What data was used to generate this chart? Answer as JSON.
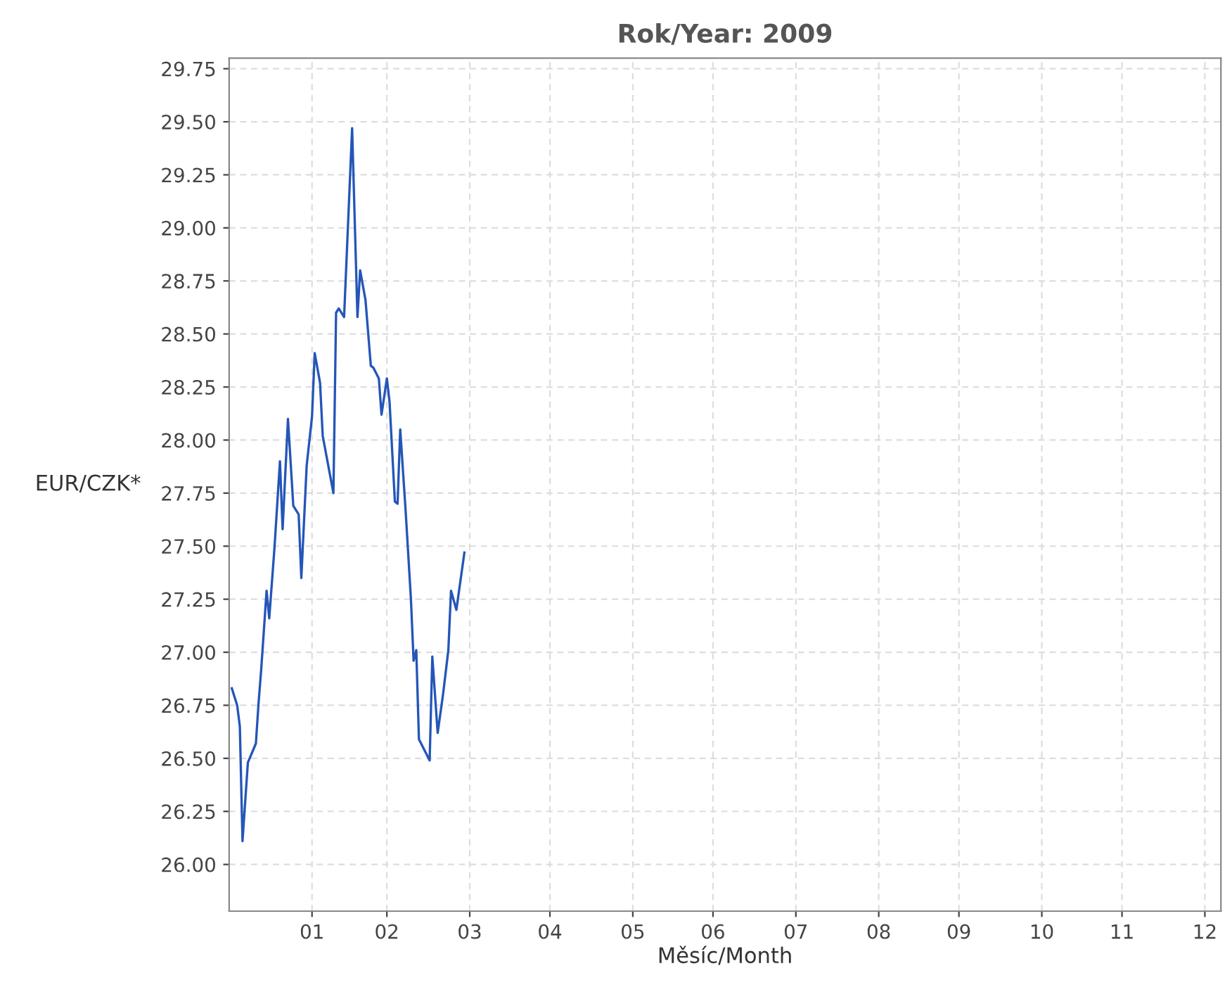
{
  "chart_data": {
    "type": "line",
    "title": "Rok/Year: 2009",
    "xlabel": "Měsíc/Month",
    "ylabel": "EUR/CZK*",
    "x": [
      "2009-01-02",
      "2009-01-04",
      "2009-01-05",
      "2009-01-06",
      "2009-01-08",
      "2009-01-11",
      "2009-01-12",
      "2009-01-13",
      "2009-01-15",
      "2009-01-16",
      "2009-01-18",
      "2009-01-20",
      "2009-01-21",
      "2009-01-23",
      "2009-01-25",
      "2009-01-27",
      "2009-01-28",
      "2009-01-30",
      "2009-02-01",
      "2009-02-02",
      "2009-02-04",
      "2009-02-05",
      "2009-02-09",
      "2009-02-10",
      "2009-02-11",
      "2009-02-13",
      "2009-02-16",
      "2009-02-18",
      "2009-02-19",
      "2009-02-21",
      "2009-02-23",
      "2009-02-24",
      "2009-02-26",
      "2009-02-27",
      "2009-03-01",
      "2009-03-02",
      "2009-03-04",
      "2009-03-05",
      "2009-03-06",
      "2009-03-08",
      "2009-03-10",
      "2009-03-11",
      "2009-03-12",
      "2009-03-13",
      "2009-03-17",
      "2009-03-18",
      "2009-03-20",
      "2009-03-22",
      "2009-03-24",
      "2009-03-25",
      "2009-03-27",
      "2009-03-30"
    ],
    "series": [
      {
        "color": "#2456b8",
        "values": [
          26.83,
          26.75,
          26.65,
          26.11,
          26.48,
          26.57,
          26.76,
          26.92,
          27.29,
          27.16,
          27.5,
          27.9,
          27.58,
          28.1,
          27.69,
          27.65,
          27.35,
          27.88,
          28.11,
          28.41,
          28.27,
          28.02,
          27.75,
          28.6,
          28.62,
          28.58,
          29.47,
          28.58,
          28.8,
          28.66,
          28.35,
          28.34,
          28.29,
          28.12,
          28.29,
          28.18,
          27.71,
          27.7,
          28.05,
          27.67,
          27.25,
          26.96,
          27.01,
          26.59,
          26.49,
          26.98,
          26.62,
          26.8,
          27.01,
          27.29,
          27.2,
          27.47
        ]
      }
    ],
    "xlim": [
      "2009-01-01",
      "2010-01-07"
    ],
    "ylim": [
      25.78,
      29.8
    ],
    "xticks": [
      {
        "value": "2009-02-01",
        "label": "01"
      },
      {
        "value": "2009-03-01",
        "label": "02"
      },
      {
        "value": "2009-04-01",
        "label": "03"
      },
      {
        "value": "2009-05-01",
        "label": "04"
      },
      {
        "value": "2009-06-01",
        "label": "05"
      },
      {
        "value": "2009-07-01",
        "label": "06"
      },
      {
        "value": "2009-08-01",
        "label": "07"
      },
      {
        "value": "2009-09-01",
        "label": "08"
      },
      {
        "value": "2009-10-01",
        "label": "09"
      },
      {
        "value": "2009-11-01",
        "label": "10"
      },
      {
        "value": "2009-12-01",
        "label": "11"
      },
      {
        "value": "2010-01-01",
        "label": "12"
      }
    ],
    "yticks": [
      {
        "value": 26,
        "label": "26.00"
      },
      {
        "value": 26.25,
        "label": "26.25"
      },
      {
        "value": 26.5,
        "label": "26.50"
      },
      {
        "value": 26.75,
        "label": "26.75"
      },
      {
        "value": 27,
        "label": "27.00"
      },
      {
        "value": 27.25,
        "label": "27.25"
      },
      {
        "value": 27.5,
        "label": "27.50"
      },
      {
        "value": 27.75,
        "label": "27.75"
      },
      {
        "value": 28,
        "label": "28.00"
      },
      {
        "value": 28.25,
        "label": "28.25"
      },
      {
        "value": 28.5,
        "label": "28.50"
      },
      {
        "value": 28.75,
        "label": "28.75"
      },
      {
        "value": 29,
        "label": "29.00"
      },
      {
        "value": 29.25,
        "label": "29.25"
      },
      {
        "value": 29.5,
        "label": "29.50"
      },
      {
        "value": 29.75,
        "label": "29.75"
      }
    ],
    "grid": true,
    "marker": "none",
    "line_style": "solid"
  }
}
